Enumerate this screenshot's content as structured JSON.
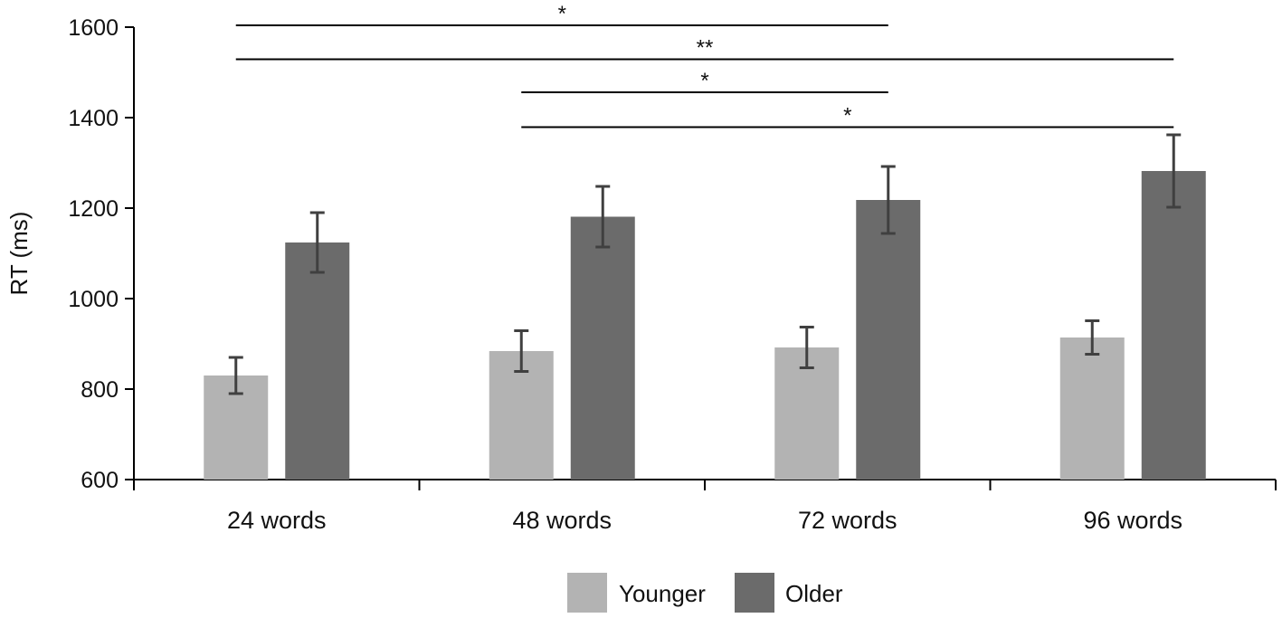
{
  "chart_data": {
    "type": "bar",
    "title": "",
    "xlabel": "",
    "ylabel": "RT (ms)",
    "ylim": [
      600,
      1600
    ],
    "yticks": [
      600,
      800,
      1000,
      1200,
      1400,
      1600
    ],
    "grid": false,
    "legend_position": "bottom-center",
    "categories": [
      "24 words",
      "48 words",
      "72 words",
      "96 words"
    ],
    "series": [
      {
        "name": "Younger",
        "color": "#b3b3b3",
        "values": [
          830,
          884,
          892,
          914
        ],
        "error": [
          40,
          45,
          45,
          37
        ]
      },
      {
        "name": "Older",
        "color": "#6b6b6b",
        "values": [
          1124,
          1181,
          1218,
          1282
        ],
        "error": [
          66,
          67,
          74,
          80
        ]
      }
    ],
    "significance": [
      {
        "label": "*",
        "from": "24 words",
        "to": "72 words",
        "y": 1604
      },
      {
        "label": "**",
        "from": "24 words",
        "to": "96 words",
        "y": 1529
      },
      {
        "label": "*",
        "from": "48 words",
        "to": "72 words",
        "y": 1456
      },
      {
        "label": "*",
        "from": "48 words",
        "to": "96 words",
        "y": 1379
      }
    ]
  }
}
